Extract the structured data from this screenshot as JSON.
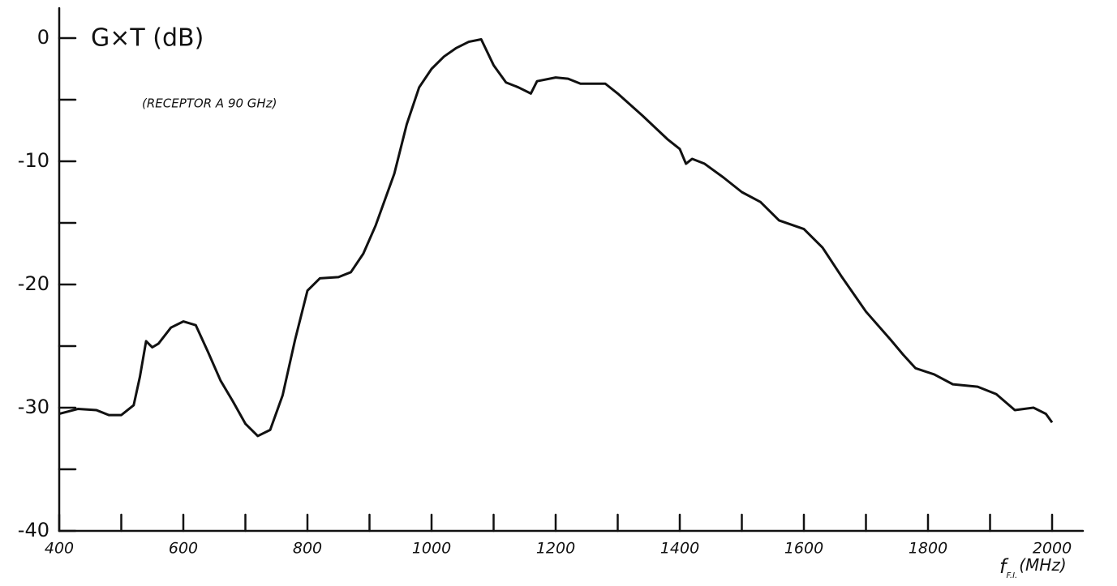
{
  "chart_data": {
    "type": "line",
    "title": "G×T (dB)",
    "annotation": "(RECEPTOR A 90 GHz)",
    "x_label": {
      "symbol": "f",
      "subscript": "F.I.",
      "unit": "(MHz)"
    },
    "x": [
      400,
      430,
      460,
      480,
      500,
      520,
      530,
      540,
      550,
      560,
      580,
      600,
      620,
      640,
      660,
      680,
      700,
      720,
      740,
      760,
      780,
      800,
      820,
      850,
      870,
      890,
      910,
      940,
      960,
      980,
      1000,
      1020,
      1040,
      1060,
      1080,
      1100,
      1120,
      1140,
      1160,
      1170,
      1200,
      1220,
      1240,
      1280,
      1300,
      1340,
      1380,
      1400,
      1410,
      1420,
      1440,
      1470,
      1500,
      1530,
      1560,
      1600,
      1630,
      1660,
      1700,
      1740,
      1760,
      1780,
      1810,
      1840,
      1880,
      1910,
      1940,
      1970,
      1990,
      2000
    ],
    "series": [
      {
        "color": "#111111",
        "values": [
          -30.5,
          -30.1,
          -30.2,
          -30.6,
          -30.6,
          -29.8,
          -27.5,
          -24.6,
          -25.1,
          -24.8,
          -23.5,
          -23.0,
          -23.3,
          -25.5,
          -27.8,
          -29.5,
          -31.3,
          -32.3,
          -31.8,
          -29.0,
          -24.5,
          -20.5,
          -19.5,
          -19.4,
          -19.0,
          -17.5,
          -15.2,
          -11,
          -7,
          -4.0,
          -2.5,
          -1.5,
          -0.8,
          -0.3,
          -0.1,
          -2.2,
          -3.6,
          -4.0,
          -4.5,
          -3.5,
          -3.2,
          -3.3,
          -3.7,
          -3.7,
          -4.5,
          -6.3,
          -8.2,
          -9.0,
          -10.2,
          -9.8,
          -10.2,
          -11.3,
          -12.5,
          -13.3,
          -14.8,
          -15.5,
          -17,
          -19.3,
          -22.2,
          -24.5,
          -25.7,
          -26.8,
          -27.3,
          -28.1,
          -28.3,
          -28.9,
          -30.2,
          -30.0,
          -30.5,
          -31.2
        ]
      }
    ],
    "xlim": [
      400,
      2000
    ],
    "xticks": [
      400,
      600,
      800,
      1000,
      1200,
      1400,
      1600,
      1800,
      2000
    ],
    "xminor_ticks": [
      500,
      700,
      900,
      1100,
      1300,
      1500,
      1700,
      1900
    ],
    "ylim": [
      -40,
      0
    ],
    "yticks": [
      0,
      -10,
      -20,
      -30,
      -40
    ],
    "yminor_ticks": [
      -5,
      -15,
      -25,
      -35
    ],
    "grid": false
  }
}
